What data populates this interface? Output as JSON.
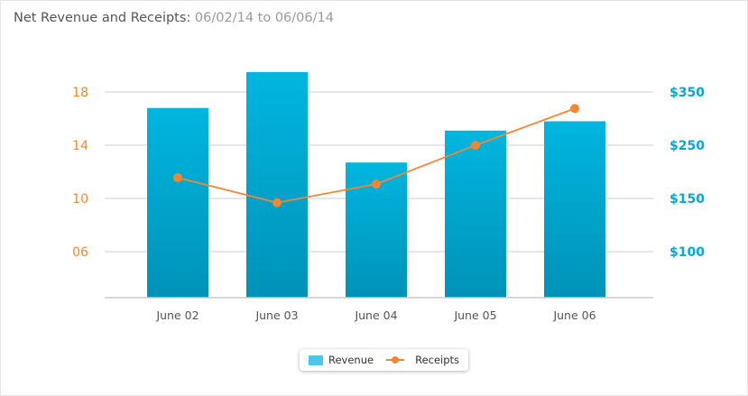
{
  "title": {
    "main": "Net Revenue and Receipts:",
    "range": "06/02/14 to 06/06/14"
  },
  "chart_data": {
    "type": "bar+line",
    "categories": [
      "June 02",
      "June 03",
      "June 04",
      "June 05",
      "June 06"
    ],
    "series": [
      {
        "name": "Revenue",
        "type": "bar",
        "axis": "left",
        "values": [
          16.8,
          19.5,
          12.7,
          15.1,
          15.8
        ],
        "color": "#00b4dd"
      },
      {
        "name": "Receipts",
        "type": "line",
        "axis": "right",
        "values": [
          189,
          146,
          177,
          250,
          319
        ],
        "color": "#f58634"
      }
    ],
    "left_axis": {
      "ticks": [
        "06",
        "10",
        "14",
        "18"
      ],
      "tick_values": [
        6,
        10,
        14,
        18
      ],
      "color": "#f58634"
    },
    "right_axis": {
      "ticks": [
        "$100",
        "$150",
        "$250",
        "$350"
      ],
      "tick_values": [
        100,
        150,
        250,
        350
      ],
      "color": "#00a9d6"
    },
    "grid": true,
    "legend": "bottom-center"
  }
}
